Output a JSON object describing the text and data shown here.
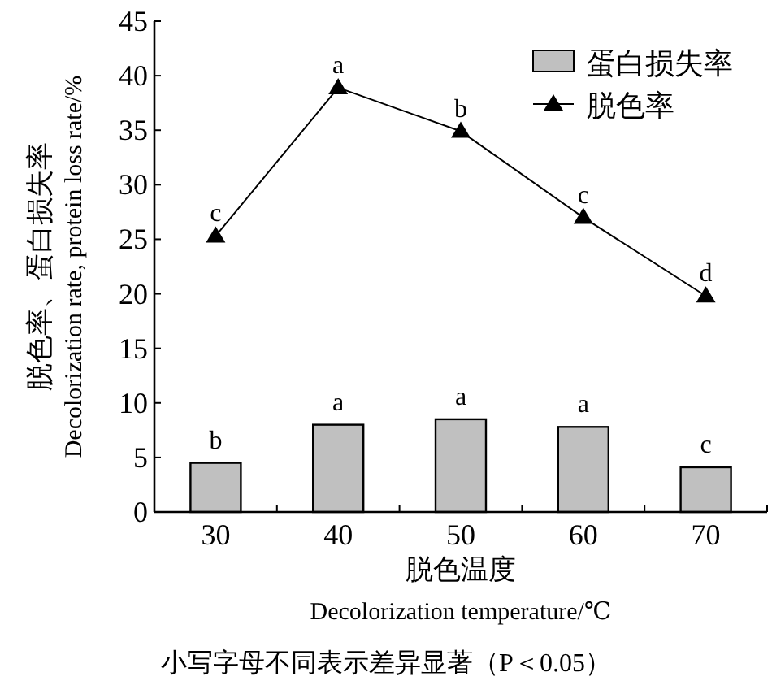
{
  "chart_data": {
    "type": "bar",
    "categories": [
      "30",
      "40",
      "50",
      "60",
      "70"
    ],
    "series": [
      {
        "name": "蛋白损失率",
        "color": "#c0c0c0",
        "values": [
          4.5,
          8.0,
          8.5,
          7.8,
          4.1
        ]
      },
      {
        "name": "脱色率",
        "type": "line",
        "color": "#000000",
        "marker": "triangle",
        "line_style": "solid",
        "values": [
          25.3,
          38.9,
          34.9,
          27.0,
          19.8
        ]
      }
    ],
    "xlabel": "脱色温度\nDecolorization temperature/℃",
    "ylabel": "脱色率、蛋白损失率\nDecolorization rate, protein loss rate/%",
    "ylim": [
      0,
      45
    ],
    "yticks": [
      0,
      5,
      10,
      15,
      20,
      25,
      30,
      35,
      40,
      45
    ],
    "grid": false,
    "legend": "top right",
    "annotations": [
      {
        "text": "b",
        "x": "30",
        "y": 4.5
      },
      {
        "text": "a",
        "x": "40",
        "y": 8.0
      },
      {
        "text": "a",
        "x": "50",
        "y": 8.5
      },
      {
        "text": "a",
        "x": "60",
        "y": 7.8
      },
      {
        "text": "c",
        "x": "70",
        "y": 4.1
      },
      {
        "text": "c",
        "x": "30",
        "y": 25.3
      },
      {
        "text": "a",
        "x": "40",
        "y": 38.9
      },
      {
        "text": "b",
        "x": "50",
        "y": 34.9
      },
      {
        "text": "c",
        "x": "60",
        "y": 27.0
      },
      {
        "text": "d",
        "x": "70",
        "y": 19.8
      },
      "小写字母不同表示差异显著（P＜0.05）"
    ]
  }
}
